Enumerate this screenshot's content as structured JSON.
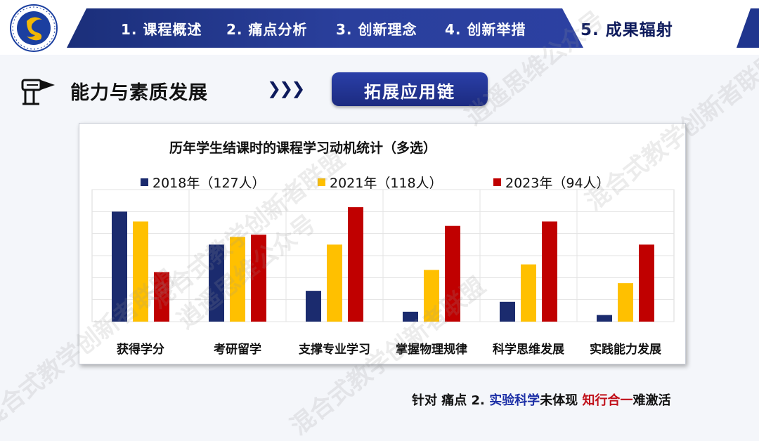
{
  "nav": {
    "items": [
      {
        "label": "1. 课程概述"
      },
      {
        "label": "2. 痛点分析"
      },
      {
        "label": "3. 创新理念"
      },
      {
        "label": "4. 创新举措"
      },
      {
        "label": "5. 成果辐射",
        "active": true
      }
    ]
  },
  "section": {
    "title": "能力与素质发展",
    "arrows": "❯❯❯",
    "pill": "拓展应用链"
  },
  "chart_data": {
    "type": "bar",
    "title": "历年学生结课时的课程学习动机统计（多选）",
    "categories": [
      "获得学分",
      "考研留学",
      "支撑专业学习",
      "掌握物理规律",
      "科学思维发展",
      "实践能力发展"
    ],
    "series": [
      {
        "name": "2018年（127人）",
        "color": "#1b2b6e",
        "values": [
          100,
          70,
          28,
          9,
          18,
          6
        ]
      },
      {
        "name": "2021年（118人）",
        "color": "#ffc000",
        "values": [
          91,
          77,
          70,
          47,
          52,
          35
        ]
      },
      {
        "name": "2023年（94人）",
        "color": "#c00000",
        "values": [
          45,
          79,
          104,
          87,
          91,
          70
        ]
      }
    ],
    "xlabel": "",
    "ylabel": "",
    "ylim": [
      0,
      120
    ],
    "grid": true,
    "legend": "top"
  },
  "footer": {
    "prefix": "针对 痛点 2.",
    "blue": "实验科学",
    "mid": "未体现",
    "red": "知行合一",
    "suffix": "难激活"
  },
  "watermark": [
    "混合式教学创新者联盟",
    "逍遥思维公众号"
  ],
  "colors": {
    "nav": "#1f358e",
    "accent_blue": "#1c2fa6",
    "accent_red": "#c0101a"
  }
}
